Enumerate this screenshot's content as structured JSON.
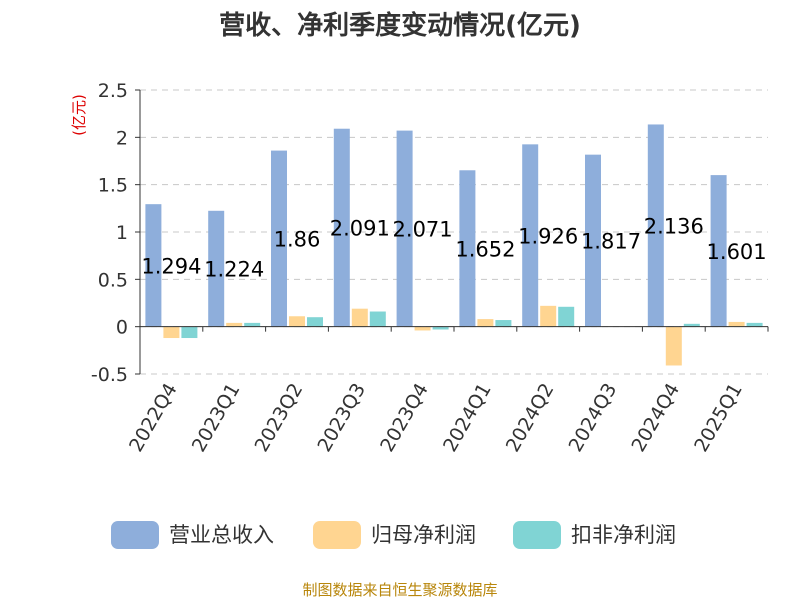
{
  "chart_data": {
    "type": "bar",
    "title": "营收、净利季度变动情况(亿元)",
    "unit_label": "(亿元)",
    "categories": [
      "2022Q4",
      "2023Q1",
      "2023Q2",
      "2023Q3",
      "2023Q4",
      "2024Q1",
      "2024Q2",
      "2024Q3",
      "2024Q4",
      "2025Q1"
    ],
    "series": [
      {
        "name": "营业总收入",
        "color": "#8eaedb",
        "values": [
          1.294,
          1.224,
          1.86,
          2.091,
          2.071,
          1.652,
          1.926,
          1.817,
          2.136,
          1.601
        ]
      },
      {
        "name": "归母净利润",
        "color": "#ffd591",
        "values": [
          -0.12,
          0.04,
          0.11,
          0.19,
          -0.04,
          0.08,
          0.22,
          0.0,
          -0.41,
          0.05
        ]
      },
      {
        "name": "扣非净利润",
        "color": "#80d4d4",
        "values": [
          -0.12,
          0.04,
          0.1,
          0.16,
          -0.03,
          0.07,
          0.21,
          0.0,
          0.03,
          0.04
        ]
      }
    ],
    "data_labels": [
      "1.294",
      "1.224",
      "1.86",
      "2.091",
      "2.071",
      "1.652",
      "1.926",
      "1.817",
      "2.136",
      "1.601"
    ],
    "y_ticks": [
      "2.5",
      "2",
      "1.5",
      "1",
      "0.5",
      "0",
      "-0.5"
    ],
    "ylim": [
      -0.5,
      2.5
    ],
    "grid": true,
    "legend_position": "bottom"
  },
  "source_text": "制图数据来自恒生聚源数据库"
}
